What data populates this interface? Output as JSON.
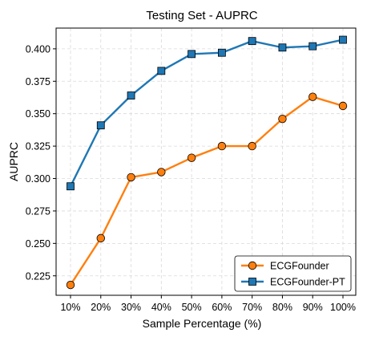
{
  "chart_data": {
    "type": "line",
    "title": "Testing Set - AUPRC",
    "xlabel": "Sample Percentage (%)",
    "ylabel": "AUPRC",
    "categories": [
      "10%",
      "20%",
      "30%",
      "40%",
      "50%",
      "60%",
      "70%",
      "80%",
      "90%",
      "100%"
    ],
    "ylim": [
      0.21,
      0.416
    ],
    "yticks": [
      "0.225",
      "0.250",
      "0.275",
      "0.300",
      "0.325",
      "0.350",
      "0.375",
      "0.400"
    ],
    "grid": true,
    "legend_position": "bottom-right",
    "series": [
      {
        "name": "ECGFounder",
        "marker": "circle",
        "color": "#ff7f0e",
        "values": [
          0.218,
          0.254,
          0.301,
          0.305,
          0.316,
          0.325,
          0.325,
          0.346,
          0.363,
          0.356
        ]
      },
      {
        "name": "ECGFounder-PT",
        "marker": "square",
        "color": "#1f77b4",
        "values": [
          0.294,
          0.341,
          0.364,
          0.383,
          0.396,
          0.397,
          0.406,
          0.401,
          0.402,
          0.407
        ]
      }
    ]
  }
}
